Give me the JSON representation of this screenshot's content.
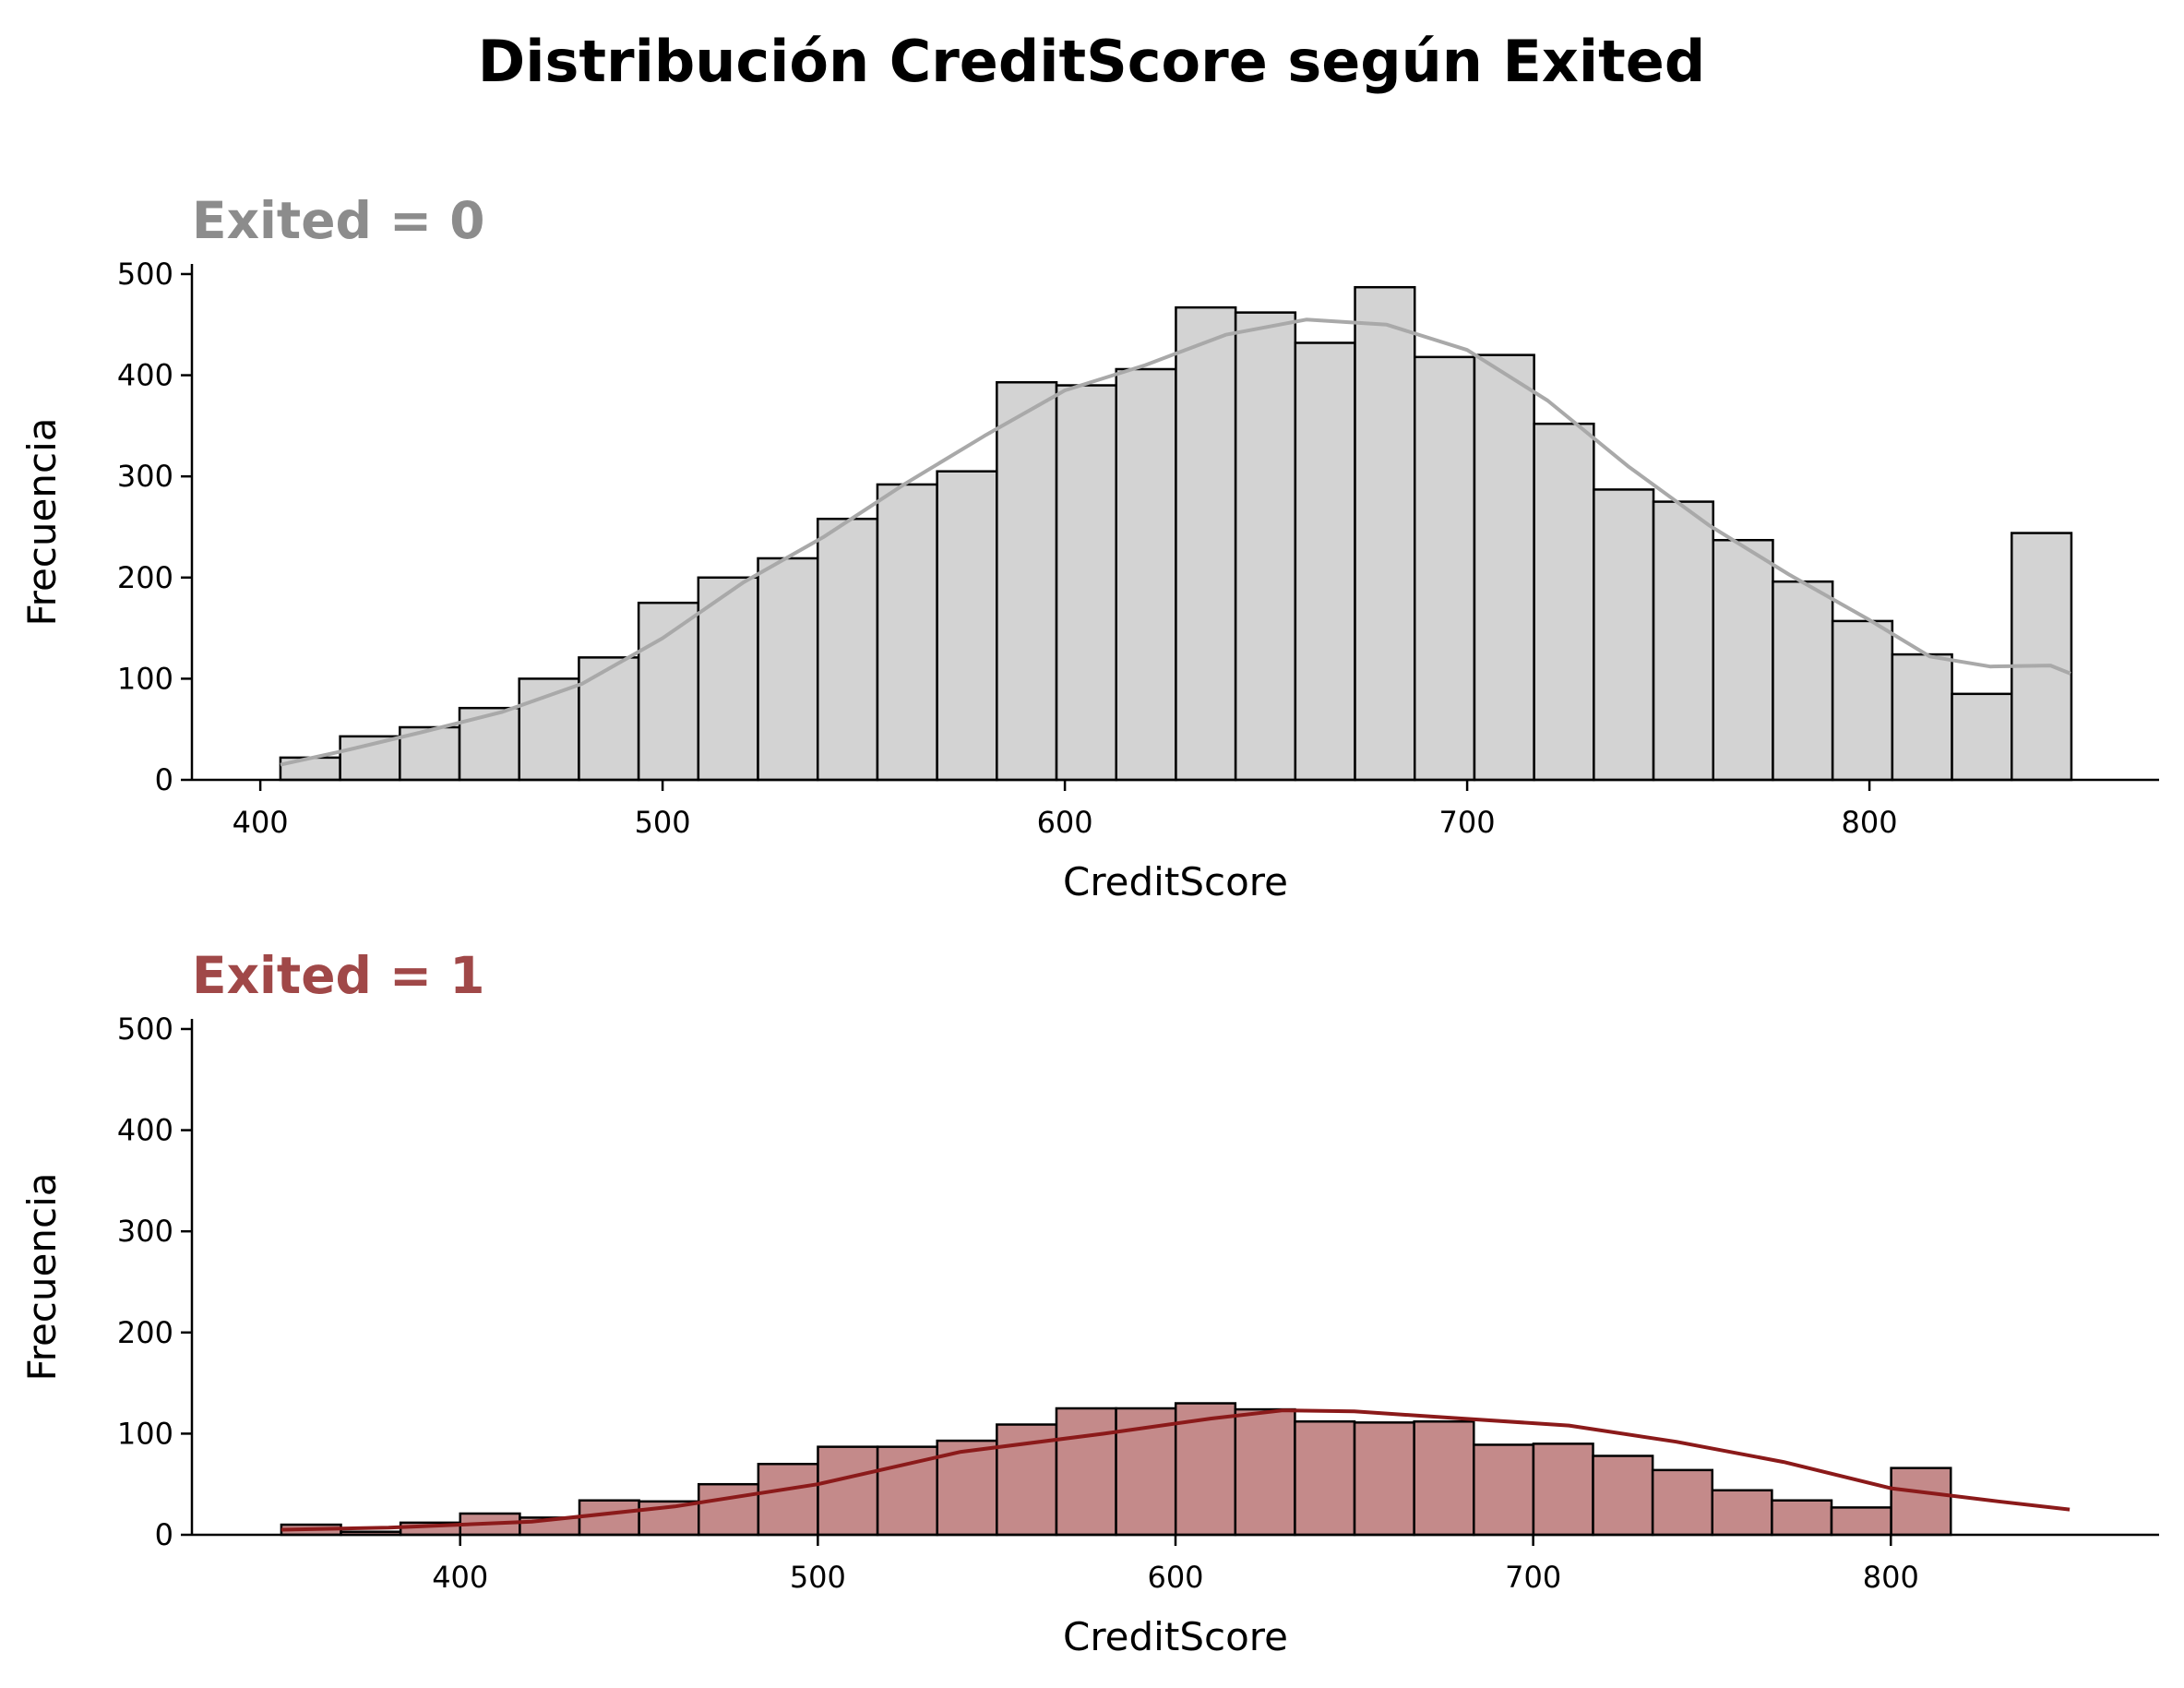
{
  "figure": {
    "title": "Distribución CreditScore según Exited"
  },
  "chart_data": [
    {
      "type": "histogram",
      "title": "Exited = 0",
      "title_color": "#8c8c8c",
      "bar_color": "#d3d3d3",
      "kde_color": "#a9a9a9",
      "edge_color": "#000000",
      "xlabel": "CreditScore",
      "ylabel": "Frecuencia",
      "xlim": [
        383,
        872
      ],
      "ylim": [
        0,
        510
      ],
      "xticks": [
        400,
        500,
        600,
        700,
        800
      ],
      "yticks": [
        0,
        100,
        200,
        300,
        400,
        500
      ],
      "bin_start": 405,
      "bin_width": 14.84,
      "values": [
        22,
        43,
        52,
        71,
        100,
        121,
        175,
        200,
        219,
        258,
        292,
        305,
        393,
        390,
        406,
        467,
        462,
        432,
        487,
        418,
        420,
        352,
        287,
        275,
        237,
        196,
        157,
        124,
        85,
        244
      ],
      "kde_x": [
        405,
        420,
        440,
        460,
        480,
        500,
        520,
        540,
        560,
        580,
        600,
        620,
        640,
        660,
        680,
        700,
        720,
        740,
        760,
        780,
        800,
        815,
        830,
        845,
        850
      ],
      "kde_y": [
        15,
        28,
        47,
        67,
        95,
        140,
        195,
        240,
        292,
        340,
        385,
        410,
        440,
        455,
        450,
        425,
        375,
        310,
        252,
        203,
        158,
        122,
        112,
        113,
        105
      ],
      "grid": false
    },
    {
      "type": "histogram",
      "title": "Exited = 1",
      "title_color": "#a04848",
      "bar_color": "#c48a8a",
      "kde_color": "#8b1a1a",
      "edge_color": "#000000",
      "xlabel": "CreditScore",
      "ylabel": "Frecuencia",
      "xlim": [
        325,
        875
      ],
      "ylim": [
        0,
        510
      ],
      "xticks": [
        400,
        500,
        600,
        700,
        800
      ],
      "yticks": [
        0,
        100,
        200,
        300,
        400,
        500
      ],
      "bin_start": 350,
      "bin_width": 16.67,
      "values": [
        10,
        3,
        12,
        21,
        17,
        34,
        33,
        50,
        70,
        87,
        87,
        93,
        109,
        125,
        125,
        130,
        124,
        112,
        111,
        112,
        89,
        90,
        78,
        64,
        44,
        34,
        27,
        66
      ],
      "kde_x": [
        350,
        380,
        420,
        460,
        500,
        540,
        580,
        610,
        630,
        650,
        680,
        710,
        740,
        770,
        800,
        830,
        850
      ],
      "kde_y": [
        5,
        7,
        13,
        28,
        50,
        82,
        100,
        115,
        123,
        122,
        115,
        108,
        92,
        72,
        46,
        33,
        25
      ],
      "grid": false
    }
  ]
}
